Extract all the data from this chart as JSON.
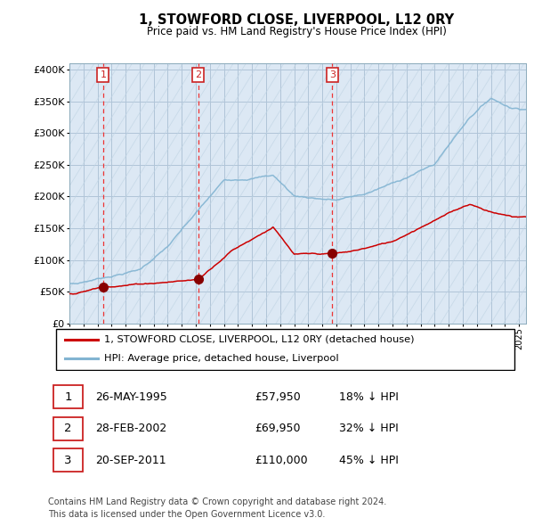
{
  "title": "1, STOWFORD CLOSE, LIVERPOOL, L12 0RY",
  "subtitle": "Price paid vs. HM Land Registry's House Price Index (HPI)",
  "transactions": [
    {
      "num": 1,
      "date": "26-MAY-1995",
      "year": 1995.4,
      "price": 57950,
      "pct": "18%"
    },
    {
      "num": 2,
      "date": "28-FEB-2002",
      "year": 2002.16,
      "price": 69950,
      "pct": "32%"
    },
    {
      "num": 3,
      "date": "20-SEP-2011",
      "year": 2011.72,
      "price": 110000,
      "pct": "45%"
    }
  ],
  "legend_property": "1, STOWFORD CLOSE, LIVERPOOL, L12 0RY (detached house)",
  "legend_hpi": "HPI: Average price, detached house, Liverpool",
  "footer": "Contains HM Land Registry data © Crown copyright and database right 2024.\nThis data is licensed under the Open Government Licence v3.0.",
  "bg_color": "#dce8f4",
  "hatch_line_color": "#c0d4e4",
  "grid_color": "#b0c4d8",
  "property_color": "#cc0000",
  "hpi_color": "#82b4d2",
  "marker_color": "#880000",
  "vline_color": "#ee3333",
  "label_box_color": "#cc2222",
  "xmin": 1993.0,
  "xmax": 2025.5,
  "ymin": 0,
  "ymax": 410000
}
